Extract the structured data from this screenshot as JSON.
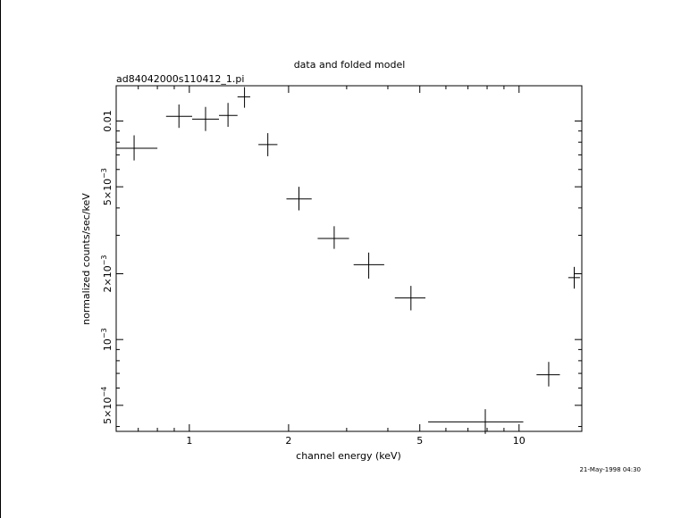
{
  "header": {
    "title": "data and folded model",
    "filename": "ad84042000s110412_1.pi",
    "timestamp": "21-May-1998 04:30"
  },
  "chart_data": {
    "type": "scatter",
    "title": "data and folded model",
    "subtitle": "ad84042000s110412_1.pi",
    "xlabel": "channel energy (keV)",
    "ylabel": "normalized counts/sec/keV",
    "xscale": "log",
    "yscale": "log",
    "xlim": [
      0.6,
      15.5
    ],
    "ylim": [
      0.00038,
      0.0145
    ],
    "grid": false,
    "legend": "none",
    "colors": {
      "marks": "#000000",
      "frame": "#000000",
      "background": "#ffffff"
    },
    "xticks": [
      {
        "value": 1,
        "label": "1"
      },
      {
        "value": 2,
        "label": "2"
      },
      {
        "value": 5,
        "label": "5"
      },
      {
        "value": 10,
        "label": "10"
      }
    ],
    "yticks": [
      {
        "value": 0.0005,
        "label": "5×10",
        "exp": "−4"
      },
      {
        "value": 0.001,
        "label": "10",
        "exp": "−3"
      },
      {
        "value": 0.002,
        "label": "2×10",
        "exp": "−3"
      },
      {
        "value": 0.005,
        "label": "5×10",
        "exp": "−3"
      },
      {
        "value": 0.01,
        "label": "0.01",
        "exp": ""
      }
    ],
    "series": [
      {
        "points": [
          {
            "x": 0.68,
            "xlo": 0.6,
            "xhi": 0.8,
            "y": 0.0075,
            "ylo": 0.0066,
            "yhi": 0.0086
          },
          {
            "x": 0.93,
            "xlo": 0.85,
            "xhi": 1.02,
            "y": 0.0105,
            "ylo": 0.0093,
            "yhi": 0.0119
          },
          {
            "x": 1.12,
            "xlo": 1.02,
            "xhi": 1.23,
            "y": 0.0102,
            "ylo": 0.009,
            "yhi": 0.0116
          },
          {
            "x": 1.31,
            "xlo": 1.23,
            "xhi": 1.4,
            "y": 0.0106,
            "ylo": 0.0094,
            "yhi": 0.0121
          },
          {
            "x": 1.47,
            "xlo": 1.4,
            "xhi": 1.53,
            "y": 0.0129,
            "ylo": 0.0115,
            "yhi": 0.0143
          },
          {
            "x": 1.73,
            "xlo": 1.62,
            "xhi": 1.85,
            "y": 0.0078,
            "ylo": 0.0069,
            "yhi": 0.0088
          },
          {
            "x": 2.15,
            "xlo": 1.97,
            "xhi": 2.35,
            "y": 0.0044,
            "ylo": 0.0039,
            "yhi": 0.005
          },
          {
            "x": 2.75,
            "xlo": 2.45,
            "xhi": 3.05,
            "y": 0.0029,
            "ylo": 0.0026,
            "yhi": 0.0033
          },
          {
            "x": 3.5,
            "xlo": 3.15,
            "xhi": 3.9,
            "y": 0.0022,
            "ylo": 0.0019,
            "yhi": 0.0025
          },
          {
            "x": 4.7,
            "xlo": 4.2,
            "xhi": 5.2,
            "y": 0.00155,
            "ylo": 0.00136,
            "yhi": 0.00176
          },
          {
            "x": 7.9,
            "xlo": 5.3,
            "xhi": 10.3,
            "y": 0.00042,
            "ylo": 0.00037,
            "yhi": 0.00048
          },
          {
            "x": 12.3,
            "xlo": 11.3,
            "xhi": 13.3,
            "y": 0.00069,
            "ylo": 0.00061,
            "yhi": 0.00079
          },
          {
            "x": 14.7,
            "xlo": 14.1,
            "xhi": 15.3,
            "y": 0.00192,
            "ylo": 0.00171,
            "yhi": 0.00215
          }
        ]
      }
    ]
  }
}
